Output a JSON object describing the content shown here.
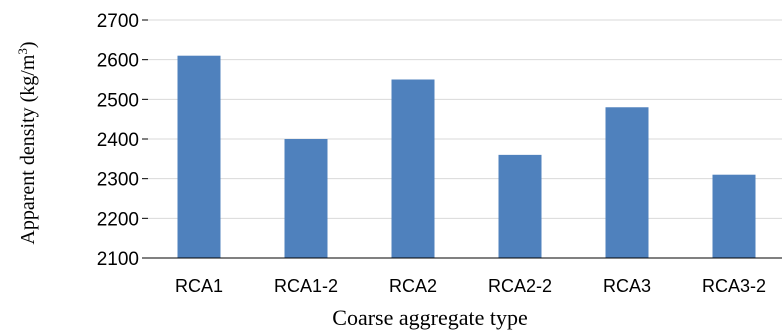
{
  "chart_data": {
    "type": "bar",
    "categories": [
      "RCA1",
      "RCA1-2",
      "RCA2",
      "RCA2-2",
      "RCA3",
      "RCA3-2"
    ],
    "values": [
      2610,
      2400,
      2550,
      2360,
      2480,
      2310
    ],
    "xlabel": "Coarse aggregate type",
    "ylabel_main": "Apparent density (kg/m",
    "ylabel_sup": "3",
    "ylabel_close": ")",
    "ylim": [
      2100,
      2700
    ],
    "yticks": [
      "2100",
      "2200",
      "2300",
      "2400",
      "2500",
      "2600",
      "2700"
    ],
    "grid": true,
    "bar_color": "#4f81bd",
    "grid_color": "#d9d9d9"
  }
}
